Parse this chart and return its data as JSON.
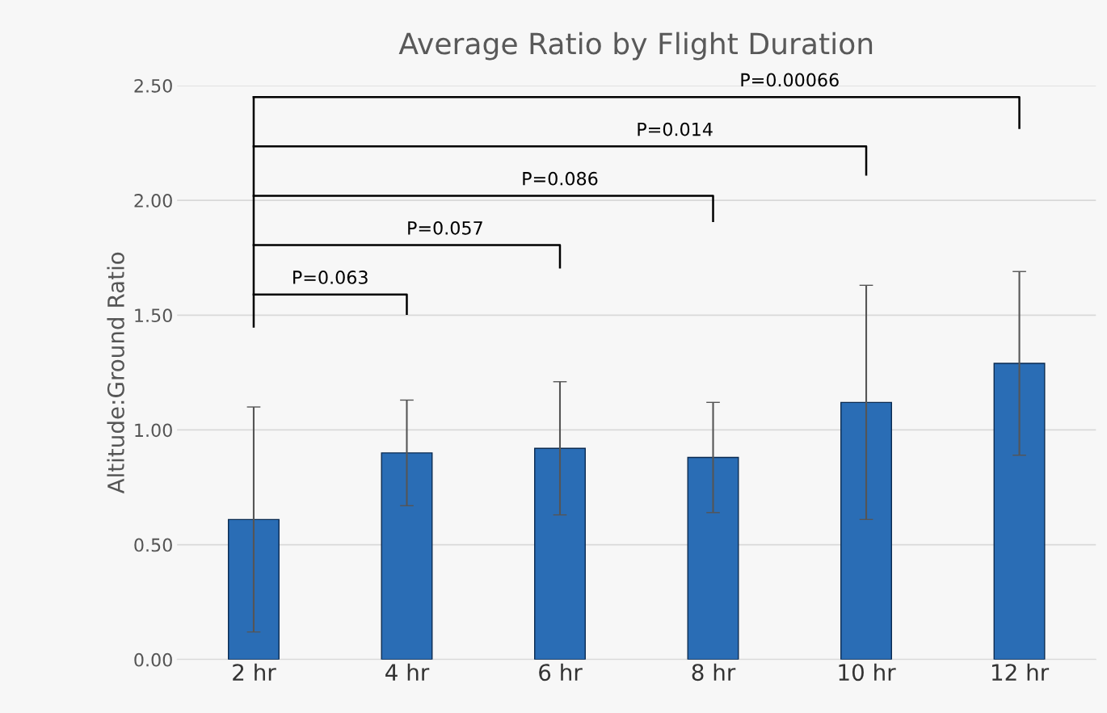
{
  "chart_data": {
    "type": "bar",
    "title": "Average Ratio by Flight Duration",
    "ylabel": "Altitude:Ground Ratio",
    "categories": [
      "2 hr",
      "4 hr",
      "6 hr",
      "8 hr",
      "10 hr",
      "12 hr"
    ],
    "values": [
      0.61,
      0.9,
      0.92,
      0.88,
      1.12,
      1.29
    ],
    "errors": [
      0.49,
      0.23,
      0.29,
      0.24,
      0.51,
      0.4
    ],
    "color": "#2a6db5",
    "ylim": [
      0,
      2.5
    ],
    "yticks": [
      {
        "value": 0,
        "label": "0.00"
      },
      {
        "value": 0.5,
        "label": "0.50"
      },
      {
        "value": 1.0,
        "label": "1.00"
      },
      {
        "value": 1.5,
        "label": "1.50"
      },
      {
        "value": 2.0,
        "label": "2.00"
      },
      {
        "value": 2.5,
        "label": "2.50"
      }
    ],
    "grid": "y",
    "annotations": [
      "P=0.063",
      "P=0.057",
      "P=0.086",
      "P=0.014",
      "P=0.00066"
    ]
  }
}
